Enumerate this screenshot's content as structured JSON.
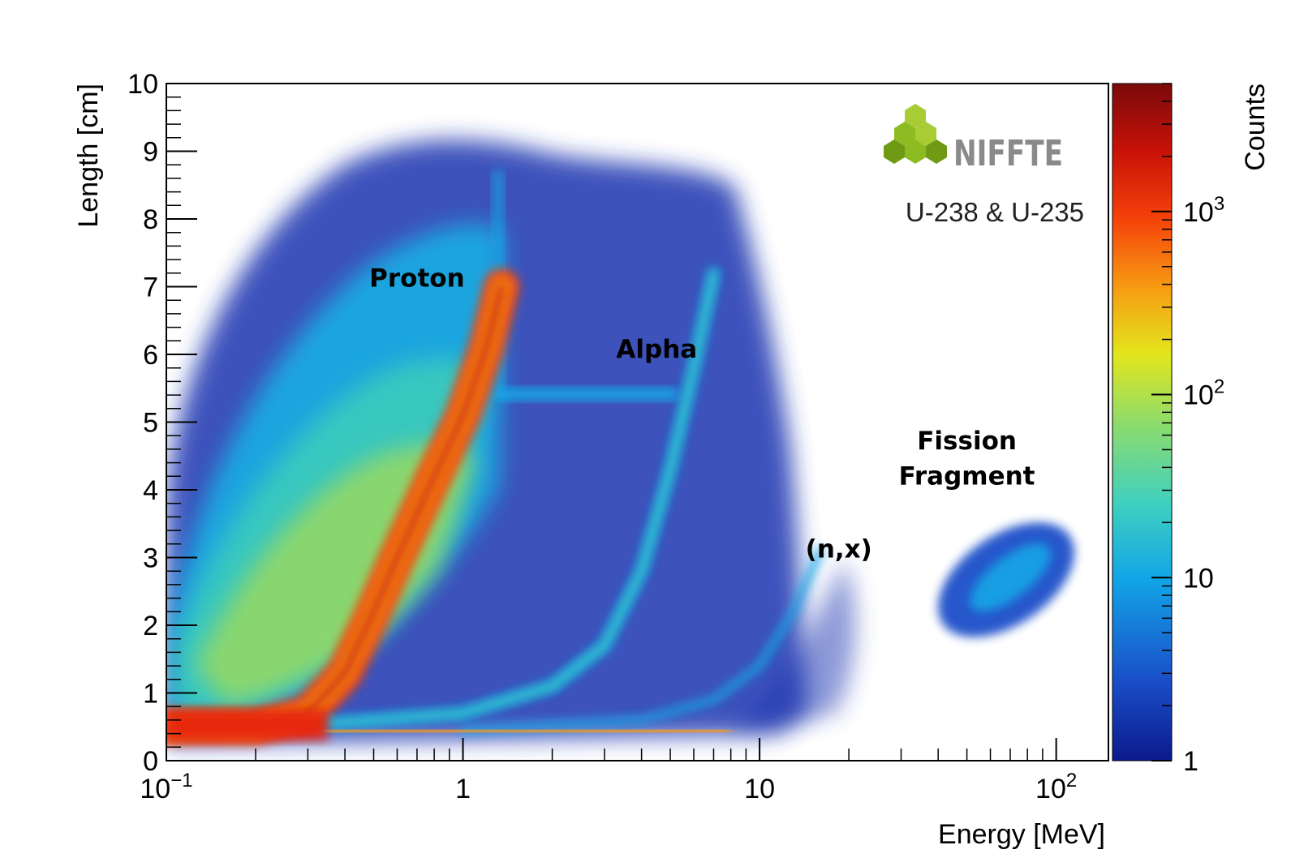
{
  "chart_data": {
    "type": "heatmap",
    "title": "",
    "xlabel": "Energy [MeV]",
    "ylabel": "Length [cm]",
    "xscale": "log",
    "xlim": [
      0.1,
      150
    ],
    "ylim": [
      0,
      10
    ],
    "x_tick_labels": [
      {
        "value": 0.1,
        "base": "10",
        "exp": "−1"
      },
      {
        "value": 1,
        "base": "1",
        "exp": ""
      },
      {
        "value": 10,
        "base": "10",
        "exp": ""
      },
      {
        "value": 100,
        "base": "10",
        "exp": "2"
      }
    ],
    "y_ticks": [
      0,
      1,
      2,
      3,
      4,
      5,
      6,
      7,
      8,
      9,
      10
    ],
    "colorbar": {
      "label": "Counts",
      "scale": "log",
      "range": [
        1,
        5000
      ],
      "tick_labels": [
        {
          "value": 1,
          "base": "1",
          "exp": ""
        },
        {
          "value": 10,
          "base": "10",
          "exp": ""
        },
        {
          "value": 100,
          "base": "10",
          "exp": "2"
        },
        {
          "value": 1000,
          "base": "10",
          "exp": "3"
        }
      ]
    },
    "bands": [
      {
        "name": "Proton",
        "peak_counts": 2000,
        "curve": [
          [
            0.1,
            0.5
          ],
          [
            0.2,
            0.5
          ],
          [
            0.3,
            0.7
          ],
          [
            0.4,
            1.3
          ],
          [
            0.5,
            2.2
          ],
          [
            0.6,
            3
          ],
          [
            0.8,
            4.2
          ],
          [
            1,
            5.1
          ],
          [
            1.2,
            6.1
          ],
          [
            1.35,
            7
          ]
        ]
      },
      {
        "name": "Alpha",
        "peak_counts": 40,
        "curve": [
          [
            0.35,
            0.55
          ],
          [
            1,
            0.7
          ],
          [
            2,
            1.1
          ],
          [
            3,
            1.7
          ],
          [
            4,
            2.8
          ],
          [
            5,
            4.3
          ],
          [
            6,
            5.8
          ],
          [
            7,
            7.2
          ]
        ]
      },
      {
        "name": "(n,x)",
        "peak_counts": 15,
        "curve": [
          [
            1,
            0.45
          ],
          [
            4,
            0.6
          ],
          [
            7,
            0.9
          ],
          [
            10,
            1.4
          ],
          [
            13,
            2.2
          ],
          [
            16,
            3.1
          ]
        ]
      },
      {
        "name": "Fission Fragment",
        "peak_counts": 20,
        "center": [
          75,
          2.7
        ]
      }
    ],
    "annotations": [
      {
        "id": "proton",
        "text": "Proton",
        "x": 0.7,
        "y": 7.0
      },
      {
        "id": "alpha",
        "text": "Alpha",
        "x": 4.5,
        "y": 5.95
      },
      {
        "id": "nx",
        "text": "(n,x)",
        "x": 18.5,
        "y": 3.0
      },
      {
        "id": "ff1",
        "text": "Fission",
        "x": 50,
        "y": 4.6
      },
      {
        "id": "ff2",
        "text": "Fragment",
        "x": 50,
        "y": 4.08
      }
    ],
    "legend": {
      "logo_text": "NIFFTE",
      "note": "U-238 & U-235"
    }
  },
  "colors": {
    "frame": "#000000",
    "background": "#ffffff",
    "colormap": [
      "#0b1a8c",
      "#1a4fc9",
      "#12a6e6",
      "#3fd0c0",
      "#8fdc6a",
      "#e3e61c",
      "#f79a12",
      "#f5420a",
      "#c81208",
      "#7a0a0a"
    ],
    "logo_green": [
      "#8dbb22",
      "#a8cc34",
      "#6f9a14"
    ]
  }
}
